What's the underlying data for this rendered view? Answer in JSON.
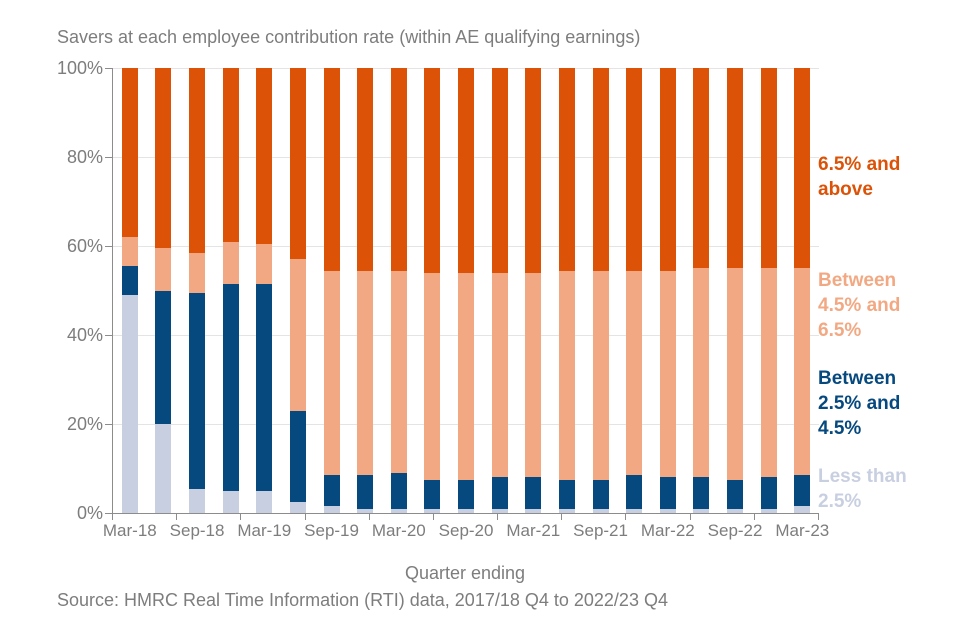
{
  "source_note": "Source: HMRC Real Time Information (RTI) data, 2017/18 Q4 to 2022/23 Q4",
  "colors": {
    "dark_orange": "#dc5206",
    "light_orange": "#f2a983",
    "dark_blue": "#06497f",
    "light_lavender": "#c8cfe0",
    "text_gray": "#7d7d7d",
    "gridline": "#e4e4e4",
    "axis": "#8c8c8c"
  },
  "chart_data": {
    "type": "bar",
    "stacked": true,
    "title": "Savers at each employee contribution rate (within AE qualifying earnings)",
    "xlabel": "Quarter ending",
    "ylabel": "",
    "ylim": [
      0,
      100
    ],
    "grid": true,
    "legend_position": "right",
    "y_tick_labels": [
      "0%",
      "20%",
      "40%",
      "60%",
      "80%",
      "100%"
    ],
    "y_tick_values": [
      0,
      20,
      40,
      60,
      80,
      100
    ],
    "categories": [
      "Mar-18",
      "Jun-18",
      "Sep-18",
      "Dec-18",
      "Mar-19",
      "Jun-19",
      "Sep-19",
      "Dec-19",
      "Mar-20",
      "Jun-20",
      "Sep-20",
      "Dec-20",
      "Mar-21",
      "Jun-21",
      "Sep-21",
      "Dec-21",
      "Mar-22",
      "Jun-22",
      "Sep-22",
      "Dec-22",
      "Mar-23"
    ],
    "x_tick_labels": [
      "Mar-18",
      "Sep-18",
      "Mar-19",
      "Sep-19",
      "Mar-20",
      "Sep-20",
      "Mar-21",
      "Sep-21",
      "Mar-22",
      "Sep-22",
      "Mar-23"
    ],
    "label_every": 2,
    "series": [
      {
        "name": "Less than 2.5%",
        "color": "#c8cfe0",
        "values": [
          49,
          20,
          5.5,
          5,
          5,
          2.5,
          1.5,
          1,
          1,
          1,
          1,
          1,
          1,
          1,
          1,
          1,
          1,
          1,
          1,
          1,
          1.5
        ]
      },
      {
        "name": "Between 2.5% and 4.5%",
        "color": "#06497f",
        "values": [
          6.5,
          30,
          44,
          46.5,
          46.5,
          20.5,
          7,
          7.5,
          8,
          6.5,
          6.5,
          7,
          7,
          6.5,
          6.5,
          7.5,
          7,
          7,
          6.5,
          7,
          7
        ]
      },
      {
        "name": "Between 4.5% and 6.5%",
        "color": "#f2a983",
        "values": [
          6.5,
          9.5,
          9,
          9.5,
          9,
          34,
          46,
          46,
          45.5,
          46.5,
          46.5,
          46,
          46,
          47,
          47,
          46,
          46.5,
          47,
          47.5,
          47,
          46.5
        ]
      },
      {
        "name": "6.5% and above",
        "color": "#dc5206",
        "values": [
          38,
          40.5,
          41.5,
          39,
          39.5,
          43,
          45.5,
          45.5,
          45.5,
          46,
          46,
          46,
          46,
          45.5,
          45.5,
          45.5,
          45.5,
          45,
          45,
          45,
          45
        ]
      }
    ]
  }
}
